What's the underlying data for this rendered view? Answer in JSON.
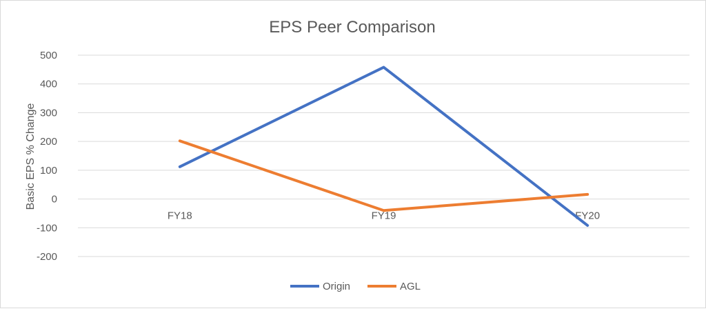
{
  "chart_data": {
    "type": "line",
    "title": "EPS Peer Comparison",
    "xlabel": "",
    "ylabel": "Basic EPS % Change",
    "categories": [
      "FY18",
      "FY19",
      "FY20"
    ],
    "ylim": [
      -200,
      500
    ],
    "yticks": [
      500,
      400,
      300,
      200,
      100,
      0,
      -100,
      -200
    ],
    "grid": true,
    "legend": "bottom",
    "series": [
      {
        "name": "Origin",
        "color": "#4472c4",
        "values": [
          112,
          458,
          -92
        ]
      },
      {
        "name": "AGL",
        "color": "#ed7d31",
        "values": [
          202,
          -40,
          16
        ]
      }
    ]
  }
}
